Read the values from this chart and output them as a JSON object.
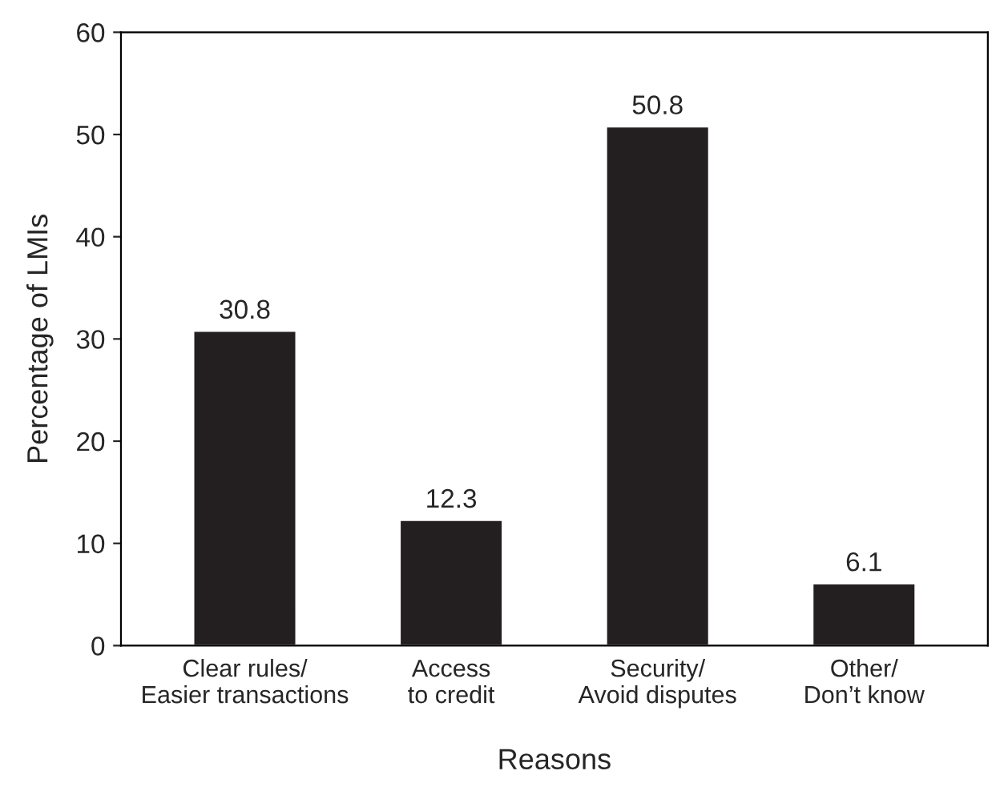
{
  "chart_data": {
    "type": "bar",
    "xlabel": "Reasons",
    "ylabel": "Percentage of LMIs",
    "categories": [
      "Clear rules/\nEasier transactions",
      "Access\nto credit",
      "Security/\nAvoid disputes",
      "Other/\nDon’t know"
    ],
    "values": [
      30.8,
      12.3,
      50.8,
      6.1
    ],
    "color": "#231f20",
    "ylim": [
      0,
      60
    ],
    "yticks": [
      0,
      10,
      20,
      30,
      40,
      50,
      60
    ],
    "grid": false,
    "legend": false,
    "data_labels": true
  }
}
